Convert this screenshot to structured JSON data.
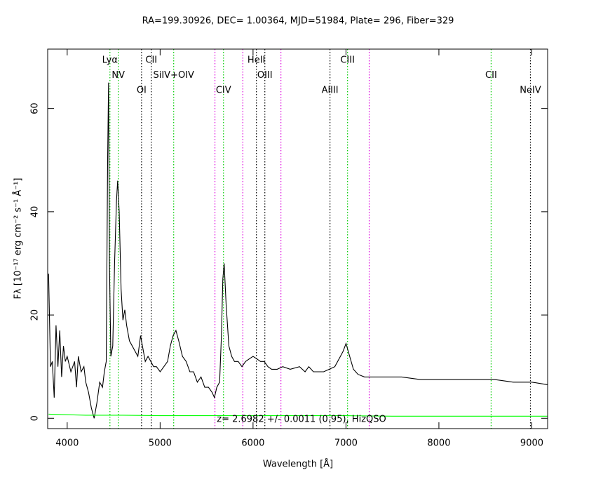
{
  "chart_data": {
    "type": "line",
    "title": "RA=199.30926, DEC= 1.00364, MJD=51984, Plate= 296, Fiber=329",
    "xlabel": "Wavelength [Å]",
    "ylabel": "Fλ [10⁻¹⁷ erg cm⁻² s⁻¹ Å⁻¹]",
    "annotation": "z= 2.6982 +/- 0.0011 (0.95), HizQSO",
    "xlim": [
      3790,
      9170
    ],
    "ylim": [
      -2,
      71.5
    ],
    "xticks": [
      4000,
      5000,
      6000,
      7000,
      8000,
      9000
    ],
    "yticks": [
      0,
      20,
      40,
      60
    ],
    "series": [
      {
        "name": "flux",
        "color": "#000000",
        "x": [
          3800,
          3820,
          3840,
          3860,
          3880,
          3900,
          3920,
          3940,
          3960,
          3980,
          4000,
          4040,
          4080,
          4100,
          4120,
          4150,
          4180,
          4200,
          4230,
          4260,
          4290,
          4320,
          4350,
          4380,
          4400,
          4420,
          4435,
          4445,
          4455,
          4470,
          4490,
          4510,
          4530,
          4543,
          4560,
          4580,
          4600,
          4620,
          4640,
          4670,
          4700,
          4730,
          4760,
          4790,
          4820,
          4840,
          4870,
          4900,
          4930,
          4960,
          5000,
          5040,
          5080,
          5110,
          5140,
          5170,
          5200,
          5240,
          5280,
          5320,
          5360,
          5400,
          5440,
          5480,
          5520,
          5560,
          5584,
          5610,
          5640,
          5660,
          5675,
          5689,
          5710,
          5740,
          5770,
          5800,
          5840,
          5880,
          5920,
          5960,
          6000,
          6040,
          6080,
          6120,
          6160,
          6200,
          6260,
          6320,
          6400,
          6500,
          6560,
          6600,
          6650,
          6700,
          6760,
          6820,
          6880,
          6940,
          6970,
          7001,
          7040,
          7080,
          7130,
          7200,
          7300,
          7400,
          7600,
          7800,
          8000,
          8200,
          8400,
          8600,
          8800,
          9000,
          9170
        ],
        "values": [
          28,
          10,
          11,
          4,
          18,
          10,
          17,
          8,
          14,
          11,
          12,
          9,
          11,
          6,
          12,
          9,
          10,
          7,
          5,
          2,
          0,
          3,
          7,
          6,
          9,
          11,
          50,
          65,
          30,
          12,
          14,
          30,
          42,
          46,
          40,
          25,
          19,
          21,
          18,
          15,
          14,
          13,
          12,
          16,
          13,
          11,
          12,
          11,
          10,
          10,
          9,
          10,
          11,
          14,
          16,
          17,
          15,
          12,
          11,
          9,
          9,
          7,
          8,
          6,
          6,
          5,
          4,
          6,
          7,
          16,
          27,
          30,
          22,
          14,
          12,
          11,
          11,
          10,
          11,
          11.5,
          12,
          11.5,
          11,
          11,
          10,
          9.5,
          9.5,
          10,
          9.5,
          10,
          9,
          10,
          9,
          9,
          9,
          9.5,
          10,
          12,
          13,
          14.5,
          12,
          9.5,
          8.5,
          8,
          8,
          8,
          8,
          7.5,
          7.5,
          7.5,
          7.5,
          7.5,
          7,
          7,
          6.5
        ]
      },
      {
        "name": "error",
        "color": "#00ff00",
        "x": [
          3800,
          4200,
          4600,
          5000,
          5500,
          6000,
          6500,
          7000,
          7500,
          8000,
          8500,
          9000,
          9170
        ],
        "values": [
          0.8,
          0.6,
          0.6,
          0.5,
          0.5,
          0.5,
          0.5,
          0.5,
          0.4,
          0.4,
          0.4,
          0.4,
          0.4
        ]
      }
    ],
    "lines": [
      {
        "label": "Lyα",
        "x": 4460,
        "color": "#00cc00"
      },
      {
        "label": "NV",
        "x": 4550,
        "color": "#00cc00"
      },
      {
        "label": "OI",
        "x": 4800,
        "color": "#000000"
      },
      {
        "label": "CII",
        "x": 4905,
        "color": "#000000"
      },
      {
        "label": "SiIV+OIV",
        "x": 5146,
        "color": "#00cc00"
      },
      {
        "label": "CIV",
        "x": 5682,
        "color": "#00cc00"
      },
      {
        "label": "HeII",
        "x": 6036,
        "color": "#000000"
      },
      {
        "label": "OIII",
        "x": 6127,
        "color": "#000000"
      },
      {
        "label": "AlIII",
        "x": 6828,
        "color": "#000000"
      },
      {
        "label": "CIII",
        "x": 7017,
        "color": "#00cc00"
      },
      {
        "label": "CII",
        "x": 8562,
        "color": "#00cc00"
      },
      {
        "label": "NeIV",
        "x": 8985,
        "color": "#000000"
      }
    ],
    "sky_lines": {
      "color": "#dd00dd",
      "x": [
        5590,
        5890,
        6300,
        7250
      ]
    }
  }
}
